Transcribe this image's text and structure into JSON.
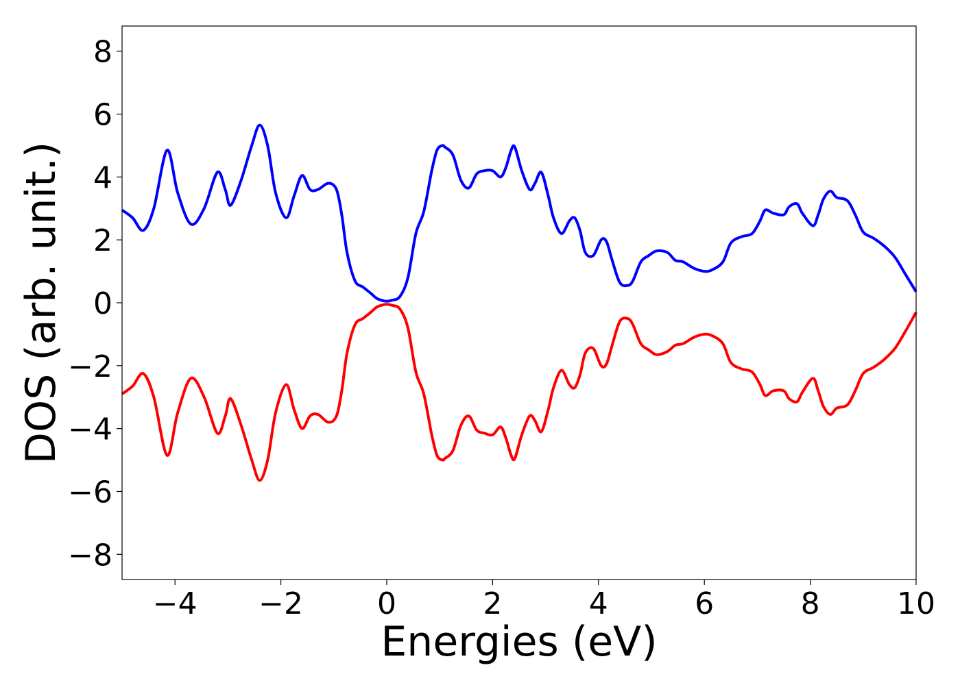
{
  "chart_data": {
    "type": "line",
    "xlabel": "Energies (eV)",
    "ylabel": "DOS (arb. unit.)",
    "xlim": [
      -5,
      10
    ],
    "ylim": [
      -8.8,
      8.8
    ],
    "xticks": [
      -4,
      -2,
      0,
      2,
      4,
      6,
      8,
      10
    ],
    "xtick_labels": [
      "−4",
      "−2",
      "0",
      "2",
      "4",
      "6",
      "8",
      "10"
    ],
    "yticks": [
      8,
      6,
      4,
      2,
      0,
      -2,
      -4,
      -6,
      -8
    ],
    "ytick_labels": [
      "8",
      "6",
      "4",
      "2",
      "0",
      "−2",
      "−4",
      "−6",
      "−8"
    ],
    "grid": false,
    "legend": "none",
    "series": [
      {
        "color": "#0000ff",
        "x": [
          -5.0,
          -4.8,
          -4.6,
          -4.4,
          -4.15,
          -3.95,
          -3.7,
          -3.45,
          -3.2,
          -3.05,
          -2.95,
          -2.75,
          -2.55,
          -2.4,
          -2.25,
          -2.1,
          -1.9,
          -1.75,
          -1.6,
          -1.45,
          -1.3,
          -1.1,
          -0.95,
          -0.85,
          -0.75,
          -0.6,
          -0.45,
          -0.3,
          -0.2,
          -0.1,
          0.0,
          0.1,
          0.25,
          0.4,
          0.55,
          0.7,
          0.85,
          0.95,
          1.05,
          1.1,
          1.25,
          1.4,
          1.55,
          1.7,
          1.85,
          2.0,
          2.15,
          2.25,
          2.35,
          2.42,
          2.55,
          2.7,
          2.8,
          2.92,
          3.05,
          3.15,
          3.3,
          3.45,
          3.55,
          3.65,
          3.75,
          3.9,
          4.05,
          4.15,
          4.25,
          4.4,
          4.55,
          4.65,
          4.8,
          4.95,
          5.1,
          5.3,
          5.45,
          5.6,
          5.8,
          6.0,
          6.15,
          6.35,
          6.5,
          6.7,
          6.9,
          7.05,
          7.15,
          7.3,
          7.5,
          7.6,
          7.75,
          7.85,
          8.05,
          8.15,
          8.25,
          8.38,
          8.5,
          8.7,
          8.85,
          9.0,
          9.2,
          9.4,
          9.6,
          9.8,
          10.0
        ],
        "y": [
          2.95,
          2.7,
          2.3,
          3.0,
          4.85,
          3.5,
          2.5,
          3.0,
          4.15,
          3.6,
          3.1,
          3.9,
          5.0,
          5.65,
          5.0,
          3.5,
          2.7,
          3.4,
          4.05,
          3.6,
          3.6,
          3.8,
          3.6,
          2.8,
          1.6,
          0.7,
          0.5,
          0.3,
          0.15,
          0.08,
          0.05,
          0.08,
          0.2,
          0.8,
          2.2,
          2.9,
          4.2,
          4.85,
          5.0,
          4.95,
          4.7,
          3.9,
          3.65,
          4.1,
          4.2,
          4.2,
          4.0,
          4.3,
          4.85,
          4.95,
          4.2,
          3.6,
          3.8,
          4.15,
          3.4,
          2.7,
          2.2,
          2.6,
          2.7,
          2.3,
          1.6,
          1.5,
          2.0,
          1.95,
          1.4,
          0.65,
          0.55,
          0.7,
          1.3,
          1.5,
          1.65,
          1.6,
          1.35,
          1.3,
          1.1,
          1.0,
          1.05,
          1.3,
          1.9,
          2.1,
          2.2,
          2.6,
          2.95,
          2.85,
          2.8,
          3.05,
          3.15,
          2.85,
          2.45,
          2.8,
          3.3,
          3.55,
          3.35,
          3.25,
          2.8,
          2.25,
          2.05,
          1.8,
          1.45,
          0.9,
          0.35
        ]
      },
      {
        "color": "#ff0000",
        "x": [
          -5.0,
          -4.8,
          -4.6,
          -4.4,
          -4.15,
          -3.95,
          -3.7,
          -3.45,
          -3.2,
          -3.05,
          -2.95,
          -2.75,
          -2.55,
          -2.4,
          -2.25,
          -2.1,
          -1.9,
          -1.75,
          -1.6,
          -1.45,
          -1.3,
          -1.1,
          -0.95,
          -0.85,
          -0.75,
          -0.6,
          -0.45,
          -0.3,
          -0.2,
          -0.1,
          0.0,
          0.1,
          0.25,
          0.4,
          0.55,
          0.7,
          0.85,
          0.95,
          1.05,
          1.1,
          1.25,
          1.4,
          1.55,
          1.7,
          1.85,
          2.0,
          2.15,
          2.25,
          2.35,
          2.42,
          2.55,
          2.7,
          2.8,
          2.92,
          3.05,
          3.15,
          3.3,
          3.45,
          3.55,
          3.65,
          3.75,
          3.9,
          4.05,
          4.15,
          4.25,
          4.4,
          4.55,
          4.65,
          4.8,
          4.95,
          5.1,
          5.3,
          5.45,
          5.6,
          5.8,
          6.0,
          6.15,
          6.35,
          6.5,
          6.7,
          6.9,
          7.05,
          7.15,
          7.3,
          7.5,
          7.6,
          7.75,
          7.85,
          8.05,
          8.15,
          8.25,
          8.38,
          8.5,
          8.7,
          8.85,
          9.0,
          9.2,
          9.4,
          9.6,
          9.8,
          10.0
        ],
        "y": [
          -2.9,
          -2.65,
          -2.25,
          -3.0,
          -4.85,
          -3.5,
          -2.4,
          -3.0,
          -4.15,
          -3.6,
          -3.05,
          -3.9,
          -5.0,
          -5.65,
          -5.0,
          -3.5,
          -2.6,
          -3.4,
          -4.0,
          -3.6,
          -3.55,
          -3.8,
          -3.6,
          -2.8,
          -1.6,
          -0.7,
          -0.5,
          -0.3,
          -0.15,
          -0.08,
          -0.05,
          -0.08,
          -0.2,
          -0.8,
          -2.2,
          -2.9,
          -4.2,
          -4.85,
          -5.0,
          -4.95,
          -4.7,
          -3.9,
          -3.6,
          -4.05,
          -4.15,
          -4.2,
          -3.95,
          -4.3,
          -4.85,
          -4.95,
          -4.2,
          -3.6,
          -3.75,
          -4.1,
          -3.4,
          -2.7,
          -2.15,
          -2.6,
          -2.7,
          -2.3,
          -1.6,
          -1.45,
          -2.0,
          -1.95,
          -1.4,
          -0.6,
          -0.5,
          -0.7,
          -1.3,
          -1.5,
          -1.65,
          -1.55,
          -1.35,
          -1.3,
          -1.1,
          -1.0,
          -1.05,
          -1.3,
          -1.9,
          -2.1,
          -2.2,
          -2.6,
          -2.95,
          -2.8,
          -2.8,
          -3.05,
          -3.15,
          -2.85,
          -2.4,
          -2.8,
          -3.3,
          -3.55,
          -3.35,
          -3.25,
          -2.8,
          -2.25,
          -2.05,
          -1.8,
          -1.45,
          -0.9,
          -0.3
        ]
      }
    ]
  }
}
